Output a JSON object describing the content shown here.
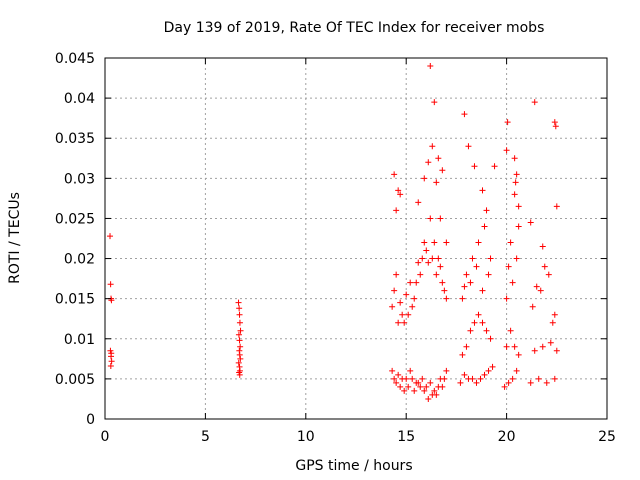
{
  "chart_data": {
    "type": "scatter",
    "title": "Day 139 of 2019, Rate Of TEC Index for receiver mobs",
    "xlabel": "GPS time / hours",
    "ylabel": "ROTI / TECUs",
    "xlim": [
      0,
      25
    ],
    "ylim": [
      0,
      0.045
    ],
    "x_ticks": [
      0,
      5,
      10,
      15,
      20,
      25
    ],
    "x_tick_labels": [
      "0",
      "5",
      "10",
      "15",
      "20",
      "25"
    ],
    "y_ticks": [
      0,
      0.005,
      0.01,
      0.015,
      0.02,
      0.025,
      0.03,
      0.035,
      0.04,
      0.045
    ],
    "y_tick_labels": [
      "0",
      "0.005",
      "0.01",
      "0.015",
      "0.02",
      "0.025",
      "0.03",
      "0.035",
      "0.04",
      "0.045"
    ],
    "grid": true,
    "marker": "+",
    "marker_color": "#ff0000",
    "series": [
      {
        "name": "ROTI",
        "x": [
          0.25,
          0.28,
          0.3,
          0.32,
          0.27,
          0.3,
          0.33,
          0.29,
          0.31,
          6.65,
          6.68,
          6.7,
          6.72,
          6.75,
          6.67,
          6.7,
          6.73,
          6.69,
          6.71,
          6.74,
          6.66,
          6.7,
          6.72,
          6.68,
          6.71,
          14.3,
          14.3,
          14.4,
          14.4,
          14.5,
          14.5,
          14.6,
          14.6,
          14.7,
          14.7,
          14.8,
          14.8,
          14.9,
          14.9,
          15.0,
          15.0,
          15.1,
          15.1,
          15.2,
          15.2,
          15.3,
          15.3,
          15.4,
          15.4,
          15.5,
          15.5,
          15.6,
          15.6,
          15.7,
          15.7,
          15.8,
          15.8,
          15.9,
          15.9,
          16.0,
          16.0,
          16.1,
          16.1,
          16.2,
          16.2,
          16.3,
          16.3,
          16.4,
          16.4,
          16.5,
          16.5,
          16.6,
          16.6,
          16.7,
          16.7,
          16.8,
          16.8,
          16.9,
          16.9,
          17.0,
          17.0,
          14.5,
          14.7,
          16.2,
          16.4,
          16.3,
          16.1,
          16.6,
          16.8,
          14.4,
          14.6,
          16.5,
          15.9,
          15.6,
          16.7,
          17.0,
          17.7,
          17.8,
          17.9,
          18.0,
          18.1,
          18.2,
          18.3,
          18.4,
          18.5,
          18.6,
          18.7,
          18.8,
          18.9,
          19.0,
          19.1,
          19.2,
          19.3,
          17.8,
          18.0,
          18.3,
          18.6,
          18.9,
          19.2,
          17.9,
          18.2,
          18.5,
          18.8,
          19.1,
          17.9,
          18.1,
          18.4,
          18.8,
          19.0,
          19.4,
          19.9,
          20.0,
          20.1,
          20.2,
          20.3,
          20.4,
          20.5,
          20.6,
          20.0,
          20.2,
          20.4,
          20.6,
          20.1,
          20.3,
          20.5,
          20.0,
          20.05,
          20.4,
          20.5,
          20.6,
          20.45,
          21.2,
          21.4,
          21.6,
          21.8,
          22.0,
          22.2,
          22.4,
          22.5,
          21.3,
          21.7,
          22.1,
          22.4,
          21.5,
          21.9,
          22.3,
          21.2,
          21.4,
          21.8,
          22.4,
          22.45,
          22.5
        ],
        "y": [
          0.0228,
          0.0168,
          0.015,
          0.0148,
          0.0085,
          0.0078,
          0.0072,
          0.0066,
          0.0082,
          0.0145,
          0.0138,
          0.013,
          0.012,
          0.011,
          0.0105,
          0.0098,
          0.009,
          0.0085,
          0.008,
          0.0075,
          0.007,
          0.0065,
          0.006,
          0.0058,
          0.0055,
          0.006,
          0.014,
          0.005,
          0.016,
          0.0045,
          0.018,
          0.0055,
          0.012,
          0.004,
          0.0145,
          0.005,
          0.013,
          0.0035,
          0.012,
          0.005,
          0.0155,
          0.004,
          0.013,
          0.006,
          0.017,
          0.005,
          0.014,
          0.0035,
          0.015,
          0.0045,
          0.017,
          0.0045,
          0.0195,
          0.004,
          0.018,
          0.005,
          0.02,
          0.0035,
          0.022,
          0.004,
          0.021,
          0.0025,
          0.0195,
          0.0045,
          0.025,
          0.003,
          0.02,
          0.0035,
          0.022,
          0.003,
          0.018,
          0.004,
          0.02,
          0.005,
          0.019,
          0.004,
          0.017,
          0.005,
          0.016,
          0.006,
          0.015,
          0.026,
          0.028,
          0.044,
          0.0395,
          0.034,
          0.032,
          0.0325,
          0.031,
          0.0305,
          0.0285,
          0.0295,
          0.03,
          0.027,
          0.025,
          0.022,
          0.0045,
          0.008,
          0.0055,
          0.009,
          0.005,
          0.011,
          0.005,
          0.012,
          0.0045,
          0.013,
          0.005,
          0.012,
          0.0055,
          0.011,
          0.006,
          0.01,
          0.0065,
          0.015,
          0.018,
          0.02,
          0.022,
          0.024,
          0.02,
          0.0165,
          0.017,
          0.019,
          0.016,
          0.018,
          0.038,
          0.034,
          0.0315,
          0.0285,
          0.026,
          0.0315,
          0.004,
          0.009,
          0.0045,
          0.011,
          0.005,
          0.009,
          0.006,
          0.008,
          0.015,
          0.022,
          0.028,
          0.024,
          0.019,
          0.017,
          0.02,
          0.0335,
          0.037,
          0.0325,
          0.0305,
          0.0265,
          0.0295,
          0.0045,
          0.0085,
          0.005,
          0.009,
          0.0045,
          0.0095,
          0.005,
          0.0085,
          0.014,
          0.016,
          0.018,
          0.013,
          0.0165,
          0.019,
          0.012,
          0.0245,
          0.0395,
          0.0215,
          0.037,
          0.0365,
          0.0265
        ]
      }
    ]
  }
}
